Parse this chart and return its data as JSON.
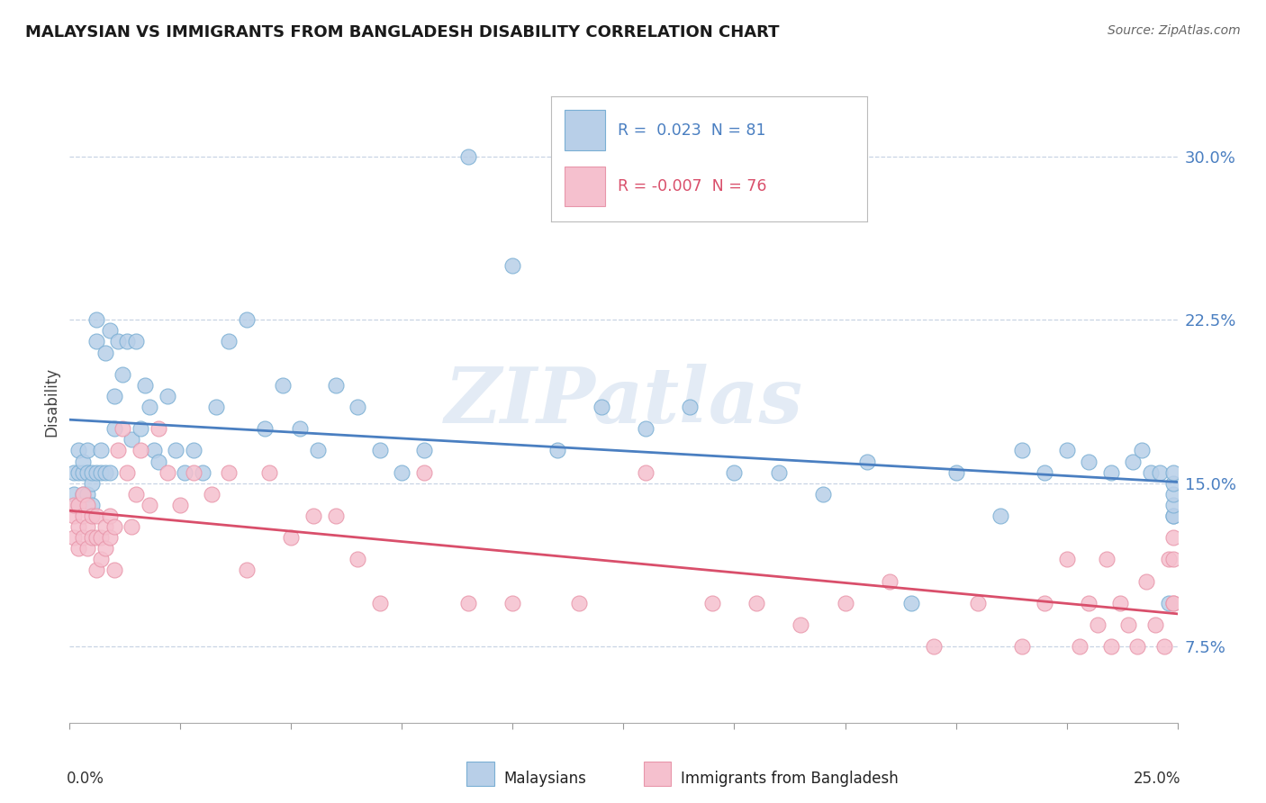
{
  "title": "MALAYSIAN VS IMMIGRANTS FROM BANGLADESH DISABILITY CORRELATION CHART",
  "source": "Source: ZipAtlas.com",
  "xlim": [
    0.0,
    0.25
  ],
  "ylim": [
    0.04,
    0.335
  ],
  "ytick_vals": [
    0.075,
    0.15,
    0.225,
    0.3
  ],
  "ytick_labels": [
    "7.5%",
    "15.0%",
    "22.5%",
    "30.0%"
  ],
  "blue_color": "#b8cfe8",
  "blue_edge": "#7aafd4",
  "red_color": "#f5c0ce",
  "red_edge": "#e896aa",
  "blue_line_color": "#4a7fc1",
  "red_line_color": "#d94f6b",
  "ytick_color": "#4a7fc1",
  "R_blue": 0.023,
  "N_blue": 81,
  "R_red": -0.007,
  "N_red": 76,
  "legend_label_blue": "Malaysians",
  "legend_label_red": "Immigrants from Bangladesh",
  "watermark": "ZIPatlas",
  "ylabel": "Disability",
  "blue_scatter_x": [
    0.001,
    0.001,
    0.002,
    0.002,
    0.002,
    0.003,
    0.003,
    0.003,
    0.004,
    0.004,
    0.004,
    0.005,
    0.005,
    0.005,
    0.006,
    0.006,
    0.006,
    0.007,
    0.007,
    0.008,
    0.008,
    0.009,
    0.009,
    0.01,
    0.01,
    0.011,
    0.012,
    0.013,
    0.014,
    0.015,
    0.016,
    0.017,
    0.018,
    0.019,
    0.02,
    0.022,
    0.024,
    0.026,
    0.028,
    0.03,
    0.033,
    0.036,
    0.04,
    0.044,
    0.048,
    0.052,
    0.056,
    0.06,
    0.065,
    0.07,
    0.075,
    0.08,
    0.09,
    0.1,
    0.11,
    0.12,
    0.13,
    0.14,
    0.15,
    0.16,
    0.17,
    0.18,
    0.19,
    0.2,
    0.21,
    0.215,
    0.22,
    0.225,
    0.23,
    0.235,
    0.24,
    0.242,
    0.244,
    0.246,
    0.248,
    0.249,
    0.249,
    0.249,
    0.249,
    0.249,
    0.249
  ],
  "blue_scatter_y": [
    0.145,
    0.155,
    0.14,
    0.155,
    0.165,
    0.145,
    0.155,
    0.16,
    0.145,
    0.155,
    0.165,
    0.14,
    0.15,
    0.155,
    0.155,
    0.215,
    0.225,
    0.155,
    0.165,
    0.155,
    0.21,
    0.155,
    0.22,
    0.19,
    0.175,
    0.215,
    0.2,
    0.215,
    0.17,
    0.215,
    0.175,
    0.195,
    0.185,
    0.165,
    0.16,
    0.19,
    0.165,
    0.155,
    0.165,
    0.155,
    0.185,
    0.215,
    0.225,
    0.175,
    0.195,
    0.175,
    0.165,
    0.195,
    0.185,
    0.165,
    0.155,
    0.165,
    0.3,
    0.25,
    0.165,
    0.185,
    0.175,
    0.185,
    0.155,
    0.155,
    0.145,
    0.16,
    0.095,
    0.155,
    0.135,
    0.165,
    0.155,
    0.165,
    0.16,
    0.155,
    0.16,
    0.165,
    0.155,
    0.155,
    0.095,
    0.135,
    0.135,
    0.14,
    0.145,
    0.15,
    0.155
  ],
  "red_scatter_x": [
    0.001,
    0.001,
    0.001,
    0.002,
    0.002,
    0.002,
    0.003,
    0.003,
    0.003,
    0.004,
    0.004,
    0.004,
    0.005,
    0.005,
    0.006,
    0.006,
    0.006,
    0.007,
    0.007,
    0.008,
    0.008,
    0.009,
    0.009,
    0.01,
    0.01,
    0.011,
    0.012,
    0.013,
    0.014,
    0.015,
    0.016,
    0.018,
    0.02,
    0.022,
    0.025,
    0.028,
    0.032,
    0.036,
    0.04,
    0.045,
    0.05,
    0.055,
    0.06,
    0.065,
    0.07,
    0.08,
    0.09,
    0.1,
    0.115,
    0.13,
    0.145,
    0.155,
    0.165,
    0.175,
    0.185,
    0.195,
    0.205,
    0.215,
    0.22,
    0.225,
    0.228,
    0.23,
    0.232,
    0.234,
    0.235,
    0.237,
    0.239,
    0.241,
    0.243,
    0.245,
    0.247,
    0.248,
    0.249,
    0.249,
    0.249,
    0.249
  ],
  "red_scatter_y": [
    0.125,
    0.135,
    0.14,
    0.12,
    0.13,
    0.14,
    0.125,
    0.135,
    0.145,
    0.12,
    0.13,
    0.14,
    0.125,
    0.135,
    0.11,
    0.125,
    0.135,
    0.115,
    0.125,
    0.12,
    0.13,
    0.125,
    0.135,
    0.11,
    0.13,
    0.165,
    0.175,
    0.155,
    0.13,
    0.145,
    0.165,
    0.14,
    0.175,
    0.155,
    0.14,
    0.155,
    0.145,
    0.155,
    0.11,
    0.155,
    0.125,
    0.135,
    0.135,
    0.115,
    0.095,
    0.155,
    0.095,
    0.095,
    0.095,
    0.155,
    0.095,
    0.095,
    0.085,
    0.095,
    0.105,
    0.075,
    0.095,
    0.075,
    0.095,
    0.115,
    0.075,
    0.095,
    0.085,
    0.115,
    0.075,
    0.095,
    0.085,
    0.075,
    0.105,
    0.085,
    0.075,
    0.115,
    0.095,
    0.095,
    0.115,
    0.125
  ]
}
